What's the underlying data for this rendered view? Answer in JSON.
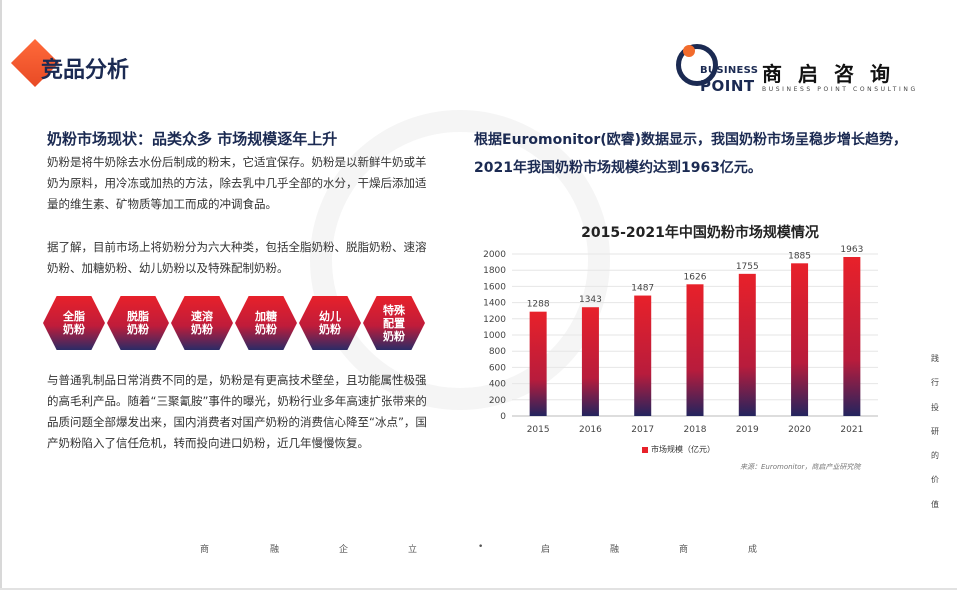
{
  "header": {
    "tag_title": "竞品分析",
    "logo": {
      "en_line1": "BUSINESS",
      "en_line2": "POINT",
      "cn": "商启咨询",
      "sub": "BUSINESS POINT CONSULTING"
    }
  },
  "left": {
    "heading": "奶粉市场现状：品类众多 市场规模逐年上升",
    "para1": "奶粉是将牛奶除去水份后制成的粉末，它适宜保存。奶粉是以新鲜牛奶或羊奶为原料，用冷冻或加热的方法，除去乳中几乎全部的水分，干燥后添加适量的维生素、矿物质等加工而成的冲调食品。",
    "para2": "据了解，目前市场上将奶粉分为六大种类，包括全脂奶粉、脱脂奶粉、速溶奶粉、加糖奶粉、幼儿奶粉以及特殊配制奶粉。",
    "types": [
      "全脂\n奶粉",
      "脱脂\n奶粉",
      "速溶\n奶粉",
      "加糖\n奶粉",
      "幼儿\n奶粉",
      "特殊\n配置\n奶粉"
    ],
    "para3": "与普通乳制品日常消费不同的是，奶粉是有更高技术壁垒，且功能属性极强的高毛利产品。随着“三聚氰胺”事件的曝光，奶粉行业多年高速扩张带来的品质问题全部爆发出来，国内消费者对国产奶粉的消费信心降至“冰点”，国产奶粉陷入了信任危机，转而投向进口奶粉，近几年慢慢恢复。"
  },
  "right": {
    "heading": "根据Euromonitor(欧睿)数据显示，我国奶粉市场呈稳步增长趋势，2021年我国奶粉市场规模约达到1963亿元。",
    "legend": "市场规模（亿元）",
    "source": "来源：Euromonitor，商启产业研究院"
  },
  "chart_data": {
    "type": "bar",
    "title": "2015-2021年中国奶粉市场规模情况",
    "categories": [
      "2015",
      "2016",
      "2017",
      "2018",
      "2019",
      "2020",
      "2021"
    ],
    "series": [
      {
        "name": "市场规模（亿元）",
        "values": [
          1288,
          1343,
          1487,
          1626,
          1755,
          1885,
          1963
        ]
      }
    ],
    "ylim": [
      0,
      2000
    ],
    "yticks": [
      0,
      200,
      400,
      600,
      800,
      1000,
      1200,
      1400,
      1600,
      1800,
      2000
    ],
    "grid": true,
    "legend_position": "bottom"
  },
  "side_text": [
    "践",
    "行",
    "投",
    "研",
    "的",
    "价",
    "值"
  ],
  "footer": [
    "商",
    "融",
    "企",
    "立",
    "•",
    "启",
    "融",
    "商",
    "成"
  ],
  "colors": {
    "navy": "#1b2a52",
    "red": "#e8212a",
    "orange": "#f26b2c"
  }
}
